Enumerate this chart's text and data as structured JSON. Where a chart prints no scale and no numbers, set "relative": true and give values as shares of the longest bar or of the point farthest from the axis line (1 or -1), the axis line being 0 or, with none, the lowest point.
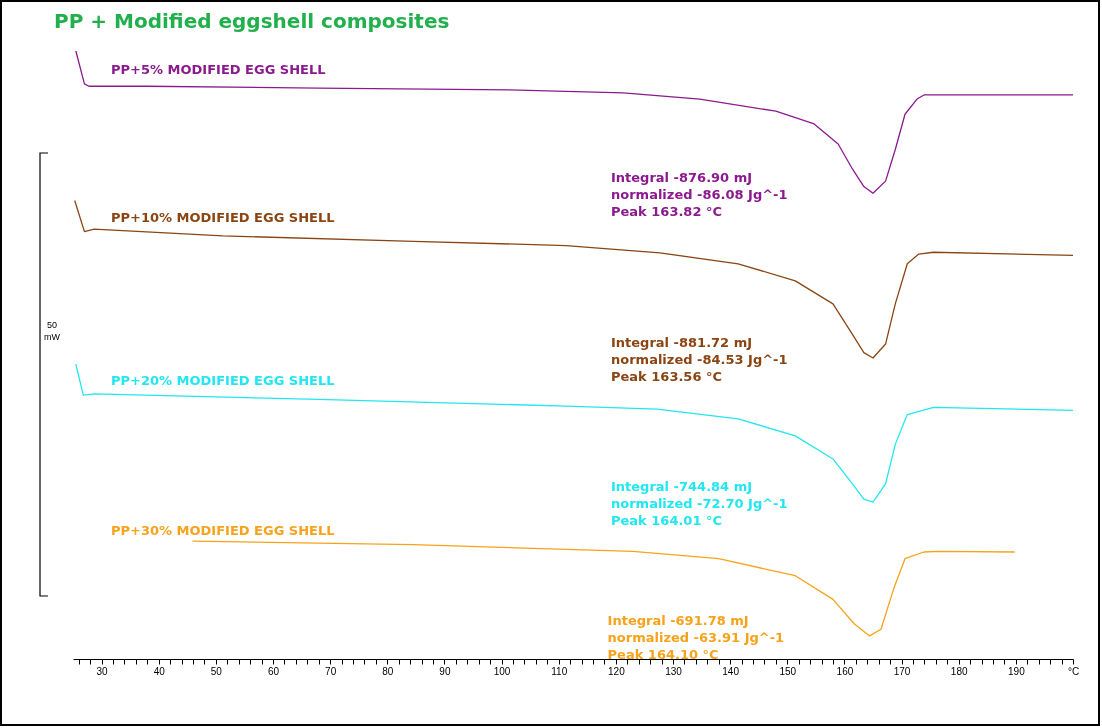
{
  "chart_data": {
    "type": "line",
    "title": "PP + Modified eggshell composites",
    "relative": true,
    "grid": false,
    "legend": false,
    "marker": "none",
    "line_style": "solid",
    "xlim": [
      25,
      200
    ],
    "xticks": [
      {
        "value": 26,
        "label": null
      },
      {
        "value": 28,
        "label": null
      },
      30,
      {
        "value": 32,
        "label": null
      },
      {
        "value": 34,
        "label": null
      },
      {
        "value": 36,
        "label": null
      },
      {
        "value": 38,
        "label": null
      },
      40,
      {
        "value": 42,
        "label": null
      },
      {
        "value": 44,
        "label": null
      },
      {
        "value": 46,
        "label": null
      },
      {
        "value": 48,
        "label": null
      },
      50,
      {
        "value": 52,
        "label": null
      },
      {
        "value": 54,
        "label": null
      },
      {
        "value": 56,
        "label": null
      },
      {
        "value": 58,
        "label": null
      },
      60,
      {
        "value": 62,
        "label": null
      },
      {
        "value": 64,
        "label": null
      },
      {
        "value": 66,
        "label": null
      },
      {
        "value": 68,
        "label": null
      },
      70,
      {
        "value": 72,
        "label": null
      },
      {
        "value": 74,
        "label": null
      },
      {
        "value": 76,
        "label": null
      },
      {
        "value": 78,
        "label": null
      },
      80,
      {
        "value": 82,
        "label": null
      },
      {
        "value": 84,
        "label": null
      },
      {
        "value": 86,
        "label": null
      },
      {
        "value": 88,
        "label": null
      },
      90,
      {
        "value": 92,
        "label": null
      },
      {
        "value": 94,
        "label": null
      },
      {
        "value": 96,
        "label": null
      },
      {
        "value": 98,
        "label": null
      },
      100,
      {
        "value": 102,
        "label": null
      },
      {
        "value": 104,
        "label": null
      },
      {
        "value": 106,
        "label": null
      },
      {
        "value": 108,
        "label": null
      },
      110,
      {
        "value": 112,
        "label": null
      },
      {
        "value": 114,
        "label": null
      },
      {
        "value": 116,
        "label": null
      },
      {
        "value": 118,
        "label": null
      },
      120,
      {
        "value": 122,
        "label": null
      },
      {
        "value": 124,
        "label": null
      },
      {
        "value": 126,
        "label": null
      },
      {
        "value": 128,
        "label": null
      },
      130,
      {
        "value": 132,
        "label": null
      },
      {
        "value": 134,
        "label": null
      },
      {
        "value": 136,
        "label": null
      },
      {
        "value": 138,
        "label": null
      },
      140,
      {
        "value": 142,
        "label": null
      },
      {
        "value": 144,
        "label": null
      },
      {
        "value": 146,
        "label": null
      },
      {
        "value": 148,
        "label": null
      },
      150,
      {
        "value": 152,
        "label": null
      },
      {
        "value": 154,
        "label": null
      },
      {
        "value": 156,
        "label": null
      },
      {
        "value": 158,
        "label": null
      },
      160,
      {
        "value": 162,
        "label": null
      },
      {
        "value": 164,
        "label": null
      },
      {
        "value": 166,
        "label": null
      },
      {
        "value": 168,
        "label": null
      },
      170,
      {
        "value": 172,
        "label": null
      },
      {
        "value": 174,
        "label": null
      },
      {
        "value": 176,
        "label": null
      },
      {
        "value": 178,
        "label": null
      },
      180,
      {
        "value": 182,
        "label": null
      },
      {
        "value": 184,
        "label": null
      },
      {
        "value": 186,
        "label": null
      },
      {
        "value": 188,
        "label": null
      },
      190,
      {
        "value": 192,
        "label": null
      },
      {
        "value": 194,
        "label": null
      },
      {
        "value": 196,
        "label": null
      },
      {
        "value": 198,
        "label": null
      },
      {
        "value": 200,
        "label": "°C"
      }
    ],
    "series": [
      {
        "name": "PP+5%  MODIFIED  EGG  SHELL",
        "color": "#8b1a8f",
        "x": [
          25.5,
          27,
          27.8,
          37.8,
          67.9,
          101.3,
          121.3,
          134.7,
          148,
          154.7,
          158.9,
          161.4,
          163.4,
          165,
          167.2,
          168.9,
          170.6,
          172.7,
          174,
          184.8,
          200
        ],
        "values": [
          1.0,
          0.946,
          0.942,
          0.942,
          0.939,
          0.936,
          0.931,
          0.921,
          0.901,
          0.88,
          0.847,
          0.806,
          0.777,
          0.766,
          0.786,
          0.838,
          0.896,
          0.921,
          0.928,
          0.928,
          0.928
        ]
      },
      {
        "name": "PP+10%  MODIFIED  EGG  SHELL",
        "color": "#8b4513",
        "x": [
          25.3,
          27,
          28.7,
          51.2,
          84.6,
          111.3,
          127.7,
          141.4,
          151.4,
          158,
          161.4,
          163.4,
          165,
          167.2,
          168.9,
          171,
          173,
          175.6,
          200
        ],
        "values": [
          0.754,
          0.703,
          0.707,
          0.696,
          0.687,
          0.68,
          0.668,
          0.65,
          0.622,
          0.584,
          0.534,
          0.504,
          0.495,
          0.518,
          0.584,
          0.65,
          0.666,
          0.669,
          0.664
        ]
      },
      {
        "name": "PP+20%  MODIFIED  EGG  SHELL",
        "color": "#22e6f0",
        "x": [
          25.5,
          26.8,
          28.7,
          67.9,
          111.3,
          127.2,
          141.4,
          151.4,
          158,
          161.4,
          163.4,
          165,
          167.2,
          168.9,
          171,
          175.6,
          200
        ],
        "values": [
          0.485,
          0.434,
          0.436,
          0.427,
          0.416,
          0.411,
          0.395,
          0.367,
          0.329,
          0.288,
          0.263,
          0.258,
          0.288,
          0.353,
          0.402,
          0.414,
          0.409
        ]
      },
      {
        "name": "PP+30%  MODIFIED  EGG  SHELL",
        "color": "#f7a21b",
        "x": [
          45.9,
          84.6,
          123,
          138,
          151.4,
          158,
          161.7,
          164.4,
          166.4,
          168.6,
          170.6,
          173.9,
          176.4,
          189.8
        ],
        "values": [
          0.194,
          0.188,
          0.177,
          0.165,
          0.137,
          0.098,
          0.058,
          0.038,
          0.049,
          0.115,
          0.165,
          0.176,
          0.177,
          0.176
        ]
      }
    ],
    "annotations": [
      "Integral        -876.90  mJ\n  normalized  -86.08  Jg^-1\nPeak             163.82  °C",
      "Integral        -881.72  mJ\n  normalized  -84.53  Jg^-1\nPeak             163.56  °C",
      "Integral        -744.84  mJ\n  normalized  -72.70  Jg^-1\nPeak             164.01  °C",
      "Integral        -691.78  mJ\n  normalized  -63.91  Jg^-1\nPeak             164.10  °C",
      "50\nmW"
    ]
  }
}
